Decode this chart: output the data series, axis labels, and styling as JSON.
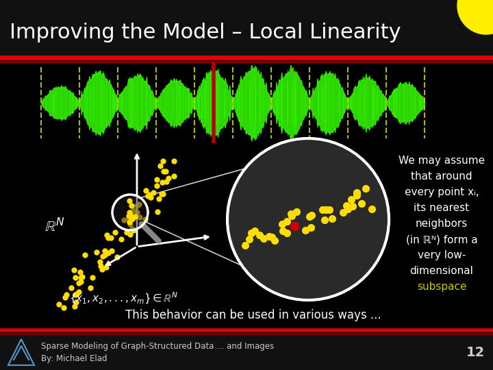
{
  "title": "Improving the Model – Local Linearity",
  "title_color": "#ffffff",
  "title_fontsize": 22,
  "bg_color": "#000000",
  "header_bg": "#111111",
  "red_line_color": "#dd0000",
  "red_line2_color": "#880000",
  "footer_text1": "Sparse Modeling of Graph-Structured Data ... and Images",
  "footer_text2": "By: Michael Elad",
  "footer_num": "12",
  "footer_color": "#cccccc",
  "body_line1": "We may assume",
  "body_line2": "that around",
  "body_line3": "every point xᵢ,",
  "body_line4": "its nearest",
  "body_line5": "neighbors",
  "body_line6": "(in ℝᴺ) form a",
  "body_line7": "very low-",
  "body_line8": "dimensional",
  "subspace_text": "subspace",
  "subspace_color": "#cccc00",
  "bottom_text": "This behavior can be used in various ways ...",
  "bottom_text_color": "#ffffff",
  "yellow": "#ffdd00",
  "red_dot": "#cc0000",
  "waveform_color": "#33ee00",
  "waveform_separator_color": "#cccc00",
  "waveform_red_bar": "#bb0000",
  "circle_fill": "#2a2a2a",
  "circle_edge": "#ffffff",
  "sun_color": "#ffee00",
  "white": "#ffffff",
  "gray_handle": "#888888"
}
